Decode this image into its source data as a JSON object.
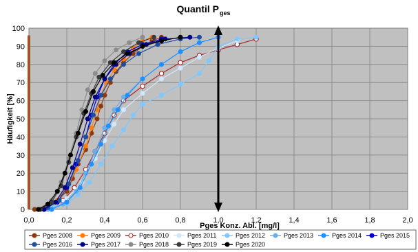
{
  "chart_data": {
    "type": "scatter",
    "title_main": "Quantil P",
    "title_sub": "ges",
    "xlabel": "Pges Konz. Abl. [mg/l]",
    "ylabel": "Häufigkeit [%]",
    "xlim": [
      0,
      2
    ],
    "ylim": [
      0,
      100
    ],
    "x_ticks": [
      "0,0",
      "0,2",
      "0,4",
      "0,6",
      "0,8",
      "1,0",
      "1,2",
      "1,4",
      "1,6",
      "1,8",
      "2,0"
    ],
    "y_ticks": [
      "0",
      "10",
      "20",
      "30",
      "40",
      "50",
      "60",
      "70",
      "80",
      "90",
      "100"
    ],
    "grid": true,
    "plot_background": "#c0c0c0",
    "legend_position": "bottom",
    "reference_bar": {
      "x": 0.0,
      "y_from": 0,
      "y_to": 96,
      "color": "#a0522d"
    },
    "marker_arrow": {
      "x": 1.0,
      "y_from": 0,
      "y_to": 100,
      "color": "#000000"
    },
    "series": [
      {
        "name": "Pges 2008",
        "color": "#8b3a0e",
        "marker": "circle-filled",
        "points": [
          [
            0.03,
            0
          ],
          [
            0.1,
            2
          ],
          [
            0.15,
            5
          ],
          [
            0.2,
            10
          ],
          [
            0.23,
            17
          ],
          [
            0.26,
            25
          ],
          [
            0.3,
            33
          ],
          [
            0.33,
            42
          ],
          [
            0.36,
            50
          ],
          [
            0.38,
            57
          ],
          [
            0.4,
            63
          ],
          [
            0.43,
            70
          ],
          [
            0.46,
            76
          ],
          [
            0.5,
            81
          ],
          [
            0.55,
            86
          ],
          [
            0.6,
            90
          ],
          [
            0.65,
            93
          ],
          [
            0.7,
            95
          ]
        ]
      },
      {
        "name": "Pges 2009",
        "color": "#ff7f0e",
        "marker": "circle-filled",
        "points": [
          [
            0.08,
            1
          ],
          [
            0.15,
            5
          ],
          [
            0.2,
            12
          ],
          [
            0.25,
            22
          ],
          [
            0.3,
            35
          ],
          [
            0.33,
            45
          ],
          [
            0.36,
            55
          ],
          [
            0.38,
            63
          ],
          [
            0.41,
            70
          ],
          [
            0.45,
            77
          ],
          [
            0.5,
            83
          ],
          [
            0.55,
            89
          ],
          [
            0.6,
            93
          ],
          [
            0.65,
            95
          ]
        ]
      },
      {
        "name": "Pges 2010",
        "color": "#a52a2a",
        "marker": "circle-open",
        "points": [
          [
            0.1,
            1
          ],
          [
            0.18,
            5
          ],
          [
            0.24,
            12
          ],
          [
            0.3,
            22
          ],
          [
            0.35,
            32
          ],
          [
            0.4,
            42
          ],
          [
            0.45,
            52
          ],
          [
            0.5,
            60
          ],
          [
            0.6,
            68
          ],
          [
            0.7,
            75
          ],
          [
            0.8,
            81
          ],
          [
            0.9,
            85
          ],
          [
            1.0,
            88
          ],
          [
            1.1,
            91
          ],
          [
            1.2,
            94
          ]
        ]
      },
      {
        "name": "Pges 2011",
        "color": "#cfe8ff",
        "marker": "circle-filled",
        "points": [
          [
            0.1,
            1
          ],
          [
            0.2,
            6
          ],
          [
            0.28,
            15
          ],
          [
            0.35,
            28
          ],
          [
            0.4,
            38
          ],
          [
            0.45,
            47
          ],
          [
            0.5,
            55
          ],
          [
            0.6,
            64
          ],
          [
            0.7,
            72
          ],
          [
            0.8,
            78
          ],
          [
            0.9,
            84
          ],
          [
            1.0,
            89
          ],
          [
            1.1,
            93
          ]
        ]
      },
      {
        "name": "Pges 2012",
        "color": "#7ec8ff",
        "marker": "circle-filled",
        "points": [
          [
            0.13,
            1
          ],
          [
            0.2,
            3
          ],
          [
            0.26,
            8
          ],
          [
            0.32,
            15
          ],
          [
            0.38,
            25
          ],
          [
            0.44,
            35
          ],
          [
            0.5,
            44
          ],
          [
            0.55,
            52
          ],
          [
            0.6,
            58
          ],
          [
            0.7,
            63
          ],
          [
            0.8,
            69
          ],
          [
            0.9,
            75
          ],
          [
            0.95,
            82
          ],
          [
            1.0,
            90
          ],
          [
            1.1,
            94
          ],
          [
            1.2,
            95
          ]
        ]
      },
      {
        "name": "Pges 2013",
        "color": "#6aaeea",
        "marker": "circle-filled",
        "points": [
          [
            0.1,
            0
          ],
          [
            0.18,
            3
          ],
          [
            0.25,
            10
          ],
          [
            0.3,
            20
          ],
          [
            0.35,
            32
          ],
          [
            0.4,
            45
          ],
          [
            0.45,
            55
          ],
          [
            0.5,
            62
          ],
          [
            0.6,
            72
          ],
          [
            0.7,
            80
          ],
          [
            0.8,
            87
          ],
          [
            0.9,
            92
          ],
          [
            1.0,
            95
          ]
        ]
      },
      {
        "name": "Pges 2014",
        "color": "#1e90ff",
        "marker": "circle-filled",
        "points": [
          [
            0.12,
            0
          ],
          [
            0.2,
            4
          ],
          [
            0.27,
            12
          ],
          [
            0.33,
            25
          ],
          [
            0.38,
            36
          ],
          [
            0.42,
            46
          ],
          [
            0.47,
            55
          ],
          [
            0.52,
            63
          ],
          [
            0.6,
            72
          ],
          [
            0.7,
            80
          ],
          [
            0.8,
            87
          ],
          [
            0.9,
            92
          ],
          [
            1.0,
            95
          ]
        ]
      },
      {
        "name": "Pges 2015",
        "color": "#0000cd",
        "marker": "circle-filled",
        "points": [
          [
            0.08,
            0
          ],
          [
            0.15,
            4
          ],
          [
            0.2,
            12
          ],
          [
            0.25,
            25
          ],
          [
            0.3,
            40
          ],
          [
            0.33,
            52
          ],
          [
            0.36,
            62
          ],
          [
            0.4,
            72
          ],
          [
            0.45,
            80
          ],
          [
            0.52,
            87
          ],
          [
            0.6,
            91
          ],
          [
            0.7,
            94
          ]
        ]
      },
      {
        "name": "Pges 2016",
        "color": "#1f4e9e",
        "marker": "circle-filled",
        "points": [
          [
            0.1,
            1
          ],
          [
            0.16,
            5
          ],
          [
            0.21,
            14
          ],
          [
            0.26,
            27
          ],
          [
            0.3,
            40
          ],
          [
            0.34,
            52
          ],
          [
            0.38,
            63
          ],
          [
            0.43,
            72
          ],
          [
            0.5,
            80
          ],
          [
            0.58,
            86
          ],
          [
            0.68,
            91
          ],
          [
            0.8,
            94
          ],
          [
            0.9,
            95
          ]
        ]
      },
      {
        "name": "Pges 2017",
        "color": "#000080",
        "marker": "circle-filled",
        "points": [
          [
            0.08,
            0
          ],
          [
            0.14,
            4
          ],
          [
            0.19,
            12
          ],
          [
            0.23,
            23
          ],
          [
            0.27,
            36
          ],
          [
            0.31,
            50
          ],
          [
            0.35,
            62
          ],
          [
            0.4,
            72
          ],
          [
            0.46,
            80
          ],
          [
            0.53,
            86
          ],
          [
            0.62,
            91
          ],
          [
            0.72,
            94
          ],
          [
            0.85,
            95
          ]
        ]
      },
      {
        "name": "Pges 2018",
        "color": "#8c8c8c",
        "marker": "circle-filled",
        "points": [
          [
            0.05,
            0
          ],
          [
            0.12,
            5
          ],
          [
            0.17,
            15
          ],
          [
            0.21,
            28
          ],
          [
            0.25,
            42
          ],
          [
            0.28,
            55
          ],
          [
            0.31,
            66
          ],
          [
            0.35,
            75
          ],
          [
            0.4,
            82
          ],
          [
            0.46,
            88
          ],
          [
            0.53,
            92
          ],
          [
            0.6,
            95
          ]
        ]
      },
      {
        "name": "Pges 2019",
        "color": "#3a3a3a",
        "marker": "circle-filled",
        "points": [
          [
            0.06,
            0
          ],
          [
            0.12,
            4
          ],
          [
            0.17,
            13
          ],
          [
            0.21,
            26
          ],
          [
            0.25,
            40
          ],
          [
            0.29,
            53
          ],
          [
            0.33,
            64
          ],
          [
            0.37,
            73
          ],
          [
            0.43,
            81
          ],
          [
            0.5,
            87
          ],
          [
            0.58,
            92
          ],
          [
            0.66,
            95
          ]
        ]
      },
      {
        "name": "Pges 2020",
        "color": "#000000",
        "marker": "circle-filled",
        "points": [
          [
            0.05,
            0
          ],
          [
            0.1,
            3
          ],
          [
            0.15,
            10
          ],
          [
            0.19,
            20
          ],
          [
            0.22,
            30
          ],
          [
            0.26,
            42
          ],
          [
            0.3,
            54
          ],
          [
            0.34,
            65
          ],
          [
            0.39,
            74
          ],
          [
            0.45,
            81
          ],
          [
            0.52,
            86
          ],
          [
            0.6,
            90
          ],
          [
            0.7,
            93
          ],
          [
            0.8,
            95
          ]
        ]
      }
    ]
  }
}
